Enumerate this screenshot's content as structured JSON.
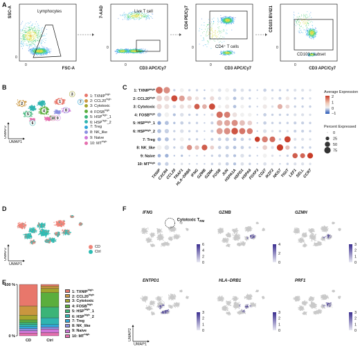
{
  "panels": {
    "A": "A",
    "B": "B",
    "C": "C",
    "D": "D",
    "E": "E",
    "F": "F"
  },
  "flow": {
    "plots": [
      {
        "ylabel": "SSC-A",
        "xlabel": "FSC-A",
        "gate": "Lymphocytes",
        "ticks": [
          "0"
        ]
      },
      {
        "ylabel": "7-AAD",
        "xlabel": "CD3 APC/Cy7",
        "gate": "Live T cell",
        "ticks": [
          "0"
        ]
      },
      {
        "ylabel": "CD4 PE/Cy7",
        "xlabel": "CD3 APC/Cy7",
        "gate": "CD4⁺ T cells",
        "ticks": [
          "0"
        ]
      },
      {
        "ylabel": "CD103 BV421",
        "xlabel": "CD3 APC/Cy7",
        "gate": "CD103⁺ subset",
        "ticks": [
          "0"
        ]
      }
    ]
  },
  "clusters": [
    {
      "id": "1",
      "name": "1: TXNIP",
      "sup": "high",
      "color": "#e8776b"
    },
    {
      "id": "2",
      "name": "2: CCL20",
      "sup": "high",
      "color": "#c9963f"
    },
    {
      "id": "3",
      "name": "3: Cytotoxic",
      "sup": "",
      "color": "#a3a52e"
    },
    {
      "id": "4",
      "name": "4: FOSB",
      "sup": "high",
      "color": "#5bae3d"
    },
    {
      "id": "5",
      "name": "5: HSP",
      "sup": "high",
      "suffix": "_1",
      "color": "#3bb478"
    },
    {
      "id": "6",
      "name": "6: HSP",
      "sup": "high",
      "suffix": "_2",
      "color": "#2fb5b0"
    },
    {
      "id": "7",
      "name": "7: Treg",
      "sup": "",
      "color": "#2fa6d8"
    },
    {
      "id": "8",
      "name": "8: NK_like",
      "sup": "",
      "color": "#8a8fe0"
    },
    {
      "id": "9",
      "name": "9: Naive",
      "sup": "",
      "color": "#cf76d8"
    },
    {
      "id": "10",
      "name": "10: MT",
      "sup": "high",
      "color": "#e56fae"
    }
  ],
  "umap": {
    "xlabel": "UMAP1",
    "ylabel": "UMAP2"
  },
  "dot_genes": [
    "TXNIP",
    "CXCR4",
    "CCL20",
    "TRAF1",
    "HLA−DRB5",
    "IFNG",
    "GZMB",
    "GZMK",
    "FOSB",
    "JUN",
    "HSPA1A",
    "HSPD1",
    "HSPA6",
    "FOXP3",
    "CD27",
    "IKZF2",
    "NKG7",
    "TIGIT",
    "LEF1",
    "SELL",
    "CCR7"
  ],
  "dot_legend": {
    "avg_title": "Average Expression",
    "avg_ticks": [
      "2",
      "1",
      "0",
      "−1"
    ],
    "pct_title": "Percent Expressed",
    "pct_ticks": [
      "0",
      "25",
      "50",
      "75"
    ]
  },
  "condition": {
    "labels": [
      "CD",
      "Ctrl"
    ],
    "colors": [
      "#ef8378",
      "#2ebcb3"
    ]
  },
  "ratio": {
    "yticks": [
      "100 %",
      "0 %"
    ],
    "categories": [
      "CD",
      "Ctrl"
    ]
  },
  "feature": {
    "annotation": "Cytotoxic T",
    "annotation_sub": "RM",
    "plots": [
      {
        "gene": "IFNG",
        "ticks": [
          "6",
          "4",
          "2",
          "0"
        ]
      },
      {
        "gene": "GZMB",
        "ticks": [
          "4",
          "2",
          "0"
        ]
      },
      {
        "gene": "GZMH",
        "ticks": [
          "3",
          "2",
          "1",
          "0"
        ]
      },
      {
        "gene": "ENTPD1",
        "ticks": [
          "3",
          "2",
          "1",
          "0"
        ]
      },
      {
        "gene": "HLA−DRB1",
        "ticks": [
          "3",
          "2",
          "1",
          "0"
        ]
      },
      {
        "gene": "PRF1",
        "ticks": [
          "3",
          "2",
          "1",
          "0"
        ]
      }
    ],
    "xlabel": "UMAP1",
    "ylabel": "UMAP2"
  },
  "chart_data": [
    {
      "type": "bar",
      "title": "",
      "categories": [
        "CD",
        "Ctrl"
      ],
      "ylim": [
        0,
        100
      ],
      "series": [
        {
          "name": "1: TXNIP high",
          "values": [
            42,
            3
          ]
        },
        {
          "name": "2: CCL20 high",
          "values": [
            18,
            5
          ]
        },
        {
          "name": "3: Cytotoxic",
          "values": [
            9,
            8
          ]
        },
        {
          "name": "4: FOSB high",
          "values": [
            5,
            28
          ]
        },
        {
          "name": "5: HSP high_1",
          "values": [
            4,
            21
          ]
        },
        {
          "name": "6: HSP high_2",
          "values": [
            4,
            13
          ]
        },
        {
          "name": "7: Treg",
          "values": [
            4,
            5
          ]
        },
        {
          "name": "8: NK_like",
          "values": [
            4,
            4
          ]
        },
        {
          "name": "9: Naive",
          "values": [
            5,
            7
          ]
        },
        {
          "name": "10: MT high",
          "values": [
            5,
            6
          ]
        }
      ]
    },
    {
      "type": "heatmap",
      "title": "",
      "genes": [
        "TXNIP",
        "CXCR4",
        "CCL20",
        "TRAF1",
        "HLA-DRB5",
        "IFNG",
        "GZMB",
        "GZMK",
        "FOSB",
        "JUN",
        "HSPA1A",
        "HSPD1",
        "HSPA6",
        "FOXP3",
        "CD27",
        "IKZF2",
        "NKG7",
        "TIGIT",
        "LEF1",
        "SELL",
        "CCR7"
      ],
      "clusters": [
        "1: TXNIP high",
        "2: CCL20 high",
        "3: Cytotoxic",
        "4: FOSB high",
        "5: HSP high_1",
        "6: HSP high_2",
        "7: Treg",
        "8: NK_like",
        "9: Naive",
        "10: MT high"
      ],
      "avg_expression": [
        [
          1.6,
          1.2,
          -0.2,
          0.0,
          -0.2,
          -0.2,
          -0.3,
          0.0,
          -0.1,
          0.0,
          -0.2,
          -0.1,
          -0.2,
          -0.2,
          -0.2,
          -0.2,
          -0.2,
          -0.2,
          -0.1,
          -0.1,
          -0.1
        ],
        [
          0.4,
          0.3,
          2.0,
          1.0,
          0.5,
          0.2,
          -0.2,
          0.3,
          -0.1,
          0.0,
          -0.3,
          -0.1,
          -0.2,
          -0.1,
          0.0,
          -0.1,
          -0.2,
          0.1,
          -0.2,
          -0.2,
          -0.1
        ],
        [
          0.3,
          0.2,
          -0.1,
          0.2,
          0.2,
          1.8,
          0.8,
          2.0,
          0.0,
          0.1,
          -0.3,
          0.0,
          -0.2,
          -0.2,
          0.1,
          -0.1,
          0.8,
          0.3,
          -0.2,
          -0.2,
          -0.2
        ],
        [
          -0.3,
          0.0,
          -0.3,
          -0.1,
          -0.2,
          -0.2,
          -0.2,
          -0.1,
          1.6,
          1.4,
          0.2,
          0.0,
          0.0,
          -0.2,
          -0.2,
          -0.2,
          -0.2,
          -0.2,
          -0.1,
          -0.1,
          -0.1
        ],
        [
          -0.5,
          -0.3,
          -0.3,
          -0.2,
          -0.2,
          -0.2,
          -0.2,
          -0.2,
          0.8,
          0.9,
          1.2,
          0.6,
          0.4,
          -0.2,
          -0.2,
          -0.2,
          -0.2,
          -0.2,
          -0.2,
          -0.2,
          -0.2
        ],
        [
          -0.3,
          -0.2,
          -0.2,
          -0.1,
          -0.2,
          -0.2,
          -0.2,
          -0.2,
          1.0,
          1.2,
          1.9,
          1.5,
          1.4,
          -0.2,
          -0.1,
          -0.1,
          -0.2,
          -0.1,
          -0.2,
          -0.2,
          -0.2
        ],
        [
          -0.4,
          -0.3,
          -0.2,
          0.0,
          -0.2,
          -0.2,
          -0.2,
          -0.2,
          -0.2,
          -0.2,
          -0.3,
          -0.2,
          -0.2,
          2.2,
          1.4,
          1.6,
          -0.2,
          2.1,
          -0.1,
          -0.1,
          -0.1
        ],
        [
          0.0,
          -0.1,
          -0.2,
          -0.1,
          1.2,
          0.6,
          1.8,
          0.4,
          -0.2,
          -0.2,
          -0.3,
          -0.2,
          -0.2,
          -0.2,
          0.4,
          -0.1,
          2.2,
          0.6,
          -0.2,
          -0.2,
          -0.2
        ],
        [
          -0.4,
          -0.4,
          -0.3,
          -0.3,
          -0.2,
          -0.2,
          -0.2,
          -0.2,
          -0.2,
          -0.2,
          -0.3,
          -0.1,
          -0.2,
          -0.2,
          0.0,
          -0.1,
          -0.2,
          -0.2,
          1.8,
          1.7,
          2.2
        ],
        [
          -0.3,
          -0.2,
          -0.2,
          -0.1,
          -0.2,
          -0.2,
          -0.2,
          -0.2,
          -0.1,
          -0.2,
          -0.3,
          -0.1,
          -0.2,
          -0.2,
          -0.1,
          -0.1,
          -0.2,
          -0.2,
          -0.1,
          -0.1,
          -0.1
        ]
      ],
      "pct_expressed": [
        [
          85,
          75,
          10,
          30,
          10,
          10,
          5,
          20,
          20,
          30,
          20,
          20,
          10,
          5,
          20,
          10,
          10,
          10,
          15,
          15,
          10
        ],
        [
          60,
          55,
          70,
          60,
          40,
          25,
          10,
          35,
          20,
          30,
          20,
          20,
          10,
          5,
          30,
          10,
          15,
          25,
          10,
          10,
          10
        ],
        [
          50,
          45,
          20,
          35,
          30,
          55,
          40,
          70,
          20,
          35,
          20,
          25,
          10,
          5,
          35,
          10,
          45,
          30,
          10,
          10,
          10
        ],
        [
          30,
          40,
          15,
          25,
          10,
          10,
          5,
          15,
          75,
          70,
          40,
          30,
          25,
          5,
          20,
          10,
          10,
          10,
          15,
          15,
          10
        ],
        [
          25,
          30,
          10,
          20,
          10,
          10,
          5,
          15,
          60,
          65,
          70,
          55,
          40,
          5,
          20,
          10,
          10,
          10,
          15,
          15,
          10
        ],
        [
          30,
          35,
          10,
          25,
          10,
          10,
          5,
          15,
          70,
          75,
          80,
          70,
          65,
          5,
          25,
          10,
          10,
          10,
          15,
          15,
          10
        ],
        [
          25,
          30,
          10,
          30,
          10,
          10,
          5,
          15,
          20,
          25,
          20,
          20,
          10,
          50,
          65,
          60,
          10,
          70,
          15,
          15,
          10
        ],
        [
          40,
          40,
          10,
          25,
          50,
          35,
          60,
          30,
          20,
          25,
          20,
          20,
          10,
          5,
          40,
          15,
          75,
          35,
          10,
          10,
          10
        ],
        [
          20,
          25,
          5,
          10,
          5,
          5,
          5,
          10,
          15,
          20,
          15,
          25,
          10,
          5,
          30,
          10,
          5,
          10,
          50,
          45,
          60
        ],
        [
          20,
          25,
          5,
          10,
          5,
          5,
          5,
          10,
          15,
          20,
          15,
          20,
          10,
          5,
          20,
          10,
          5,
          10,
          15,
          15,
          10
        ]
      ]
    }
  ]
}
